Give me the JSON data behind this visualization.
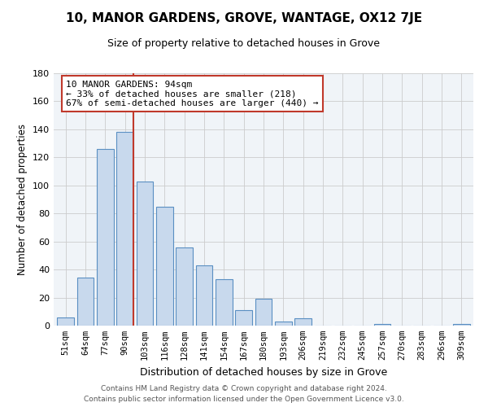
{
  "title": "10, MANOR GARDENS, GROVE, WANTAGE, OX12 7JE",
  "subtitle": "Size of property relative to detached houses in Grove",
  "xlabel": "Distribution of detached houses by size in Grove",
  "ylabel": "Number of detached properties",
  "bar_labels": [
    "51sqm",
    "64sqm",
    "77sqm",
    "90sqm",
    "103sqm",
    "116sqm",
    "128sqm",
    "141sqm",
    "154sqm",
    "167sqm",
    "180sqm",
    "193sqm",
    "206sqm",
    "219sqm",
    "232sqm",
    "245sqm",
    "257sqm",
    "270sqm",
    "283sqm",
    "296sqm",
    "309sqm"
  ],
  "bar_heights": [
    6,
    34,
    126,
    138,
    103,
    85,
    56,
    43,
    33,
    11,
    19,
    3,
    5,
    0,
    0,
    0,
    1,
    0,
    0,
    0,
    1
  ],
  "bar_color": "#c8d9ed",
  "bar_edge_color": "#5a8fc2",
  "annotation_title": "10 MANOR GARDENS: 94sqm",
  "annotation_line1": "← 33% of detached houses are smaller (218)",
  "annotation_line2": "67% of semi-detached houses are larger (440) →",
  "annotation_box_color": "#ffffff",
  "annotation_box_edge": "#c0392b",
  "vline_color": "#c0392b",
  "vline_bar_index": 3,
  "ylim": [
    0,
    180
  ],
  "yticks": [
    0,
    20,
    40,
    60,
    80,
    100,
    120,
    140,
    160,
    180
  ],
  "footer1": "Contains HM Land Registry data © Crown copyright and database right 2024.",
  "footer2": "Contains public sector information licensed under the Open Government Licence v3.0.",
  "bg_color": "#f0f4f8"
}
